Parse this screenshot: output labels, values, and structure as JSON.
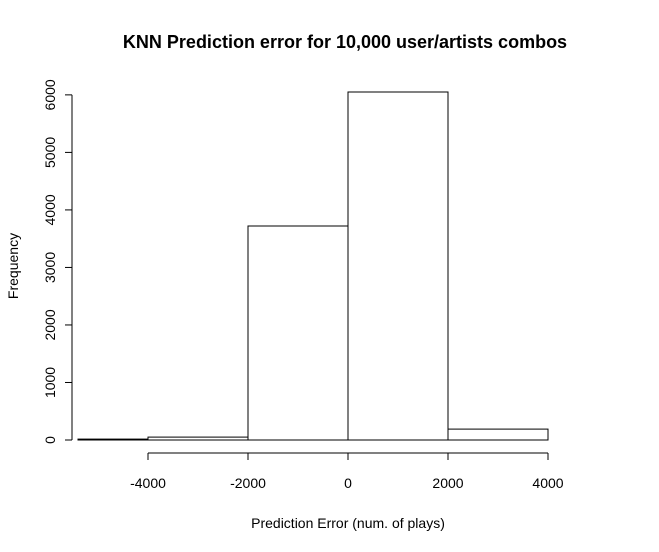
{
  "chart_data": {
    "type": "bar",
    "title": "KNN Prediction error for 10,000 user/artists combos",
    "xlabel": "Prediction Error (num. of plays)",
    "ylabel": "Frequency",
    "bins": [
      {
        "start": -5400,
        "end": -4000,
        "count": 15
      },
      {
        "start": -4000,
        "end": -2000,
        "count": 50
      },
      {
        "start": -2000,
        "end": 0,
        "count": 3720
      },
      {
        "start": 0,
        "end": 2000,
        "count": 6050
      },
      {
        "start": 2000,
        "end": 4000,
        "count": 190
      }
    ],
    "xticks": [
      -4000,
      -2000,
      0,
      2000,
      4000
    ],
    "yticks": [
      0,
      1000,
      2000,
      3000,
      4000,
      5000,
      6000
    ],
    "xlim": [
      -5400,
      4000
    ],
    "ylim": [
      0,
      6050
    ],
    "grid": false,
    "legend": "none"
  }
}
